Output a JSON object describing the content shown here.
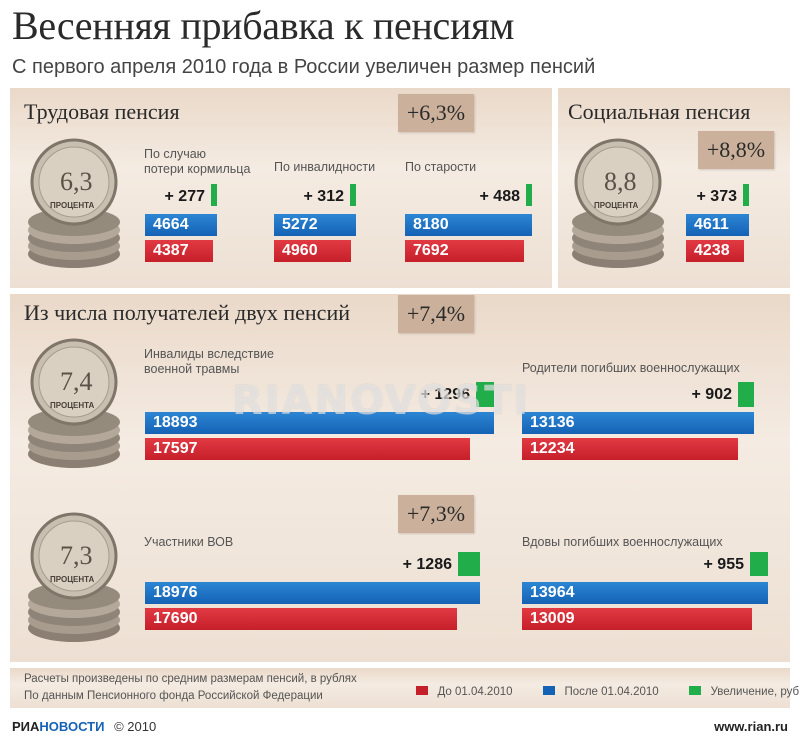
{
  "header": {
    "title": "Весенняя прибавка к пенсиям",
    "subtitle": "С первого апреля 2010 года в России увеличен размер пенсий"
  },
  "colors": {
    "before": "#c51f2a",
    "after": "#1462b5",
    "increase": "#22ad4b"
  },
  "sections": {
    "labor": {
      "title": "Трудовая пенсия",
      "pct": "+6,3%",
      "coin_value": "6,3",
      "coin_caption": "ПРОЦЕНТА"
    },
    "social": {
      "title": "Социальная пенсия",
      "pct": "+8,8%",
      "coin_value": "8,8",
      "coin_caption": "ПРОЦЕНТА"
    },
    "double": {
      "title": "Из числа получателей двух пенсий",
      "pct": "+7,4%",
      "coin_value": "7,4",
      "coin_caption": "ПРОЦЕНТА"
    },
    "veterans": {
      "pct": "+7,3%",
      "coin_value": "7,3",
      "coin_caption": "ПРОЦЕНТА"
    }
  },
  "chart_data": {
    "type": "bar",
    "unit": "руб",
    "groups": [
      {
        "label": "По случаю потери кормильца",
        "label_lines": [
          "По случаю",
          "потери кормильца"
        ],
        "before": 4387,
        "after": 4664,
        "increase": "+ 277"
      },
      {
        "label": "По инвалидности",
        "label_lines": [
          "По инвалидности"
        ],
        "before": 4960,
        "after": 5272,
        "increase": "+ 312"
      },
      {
        "label": "По старости",
        "label_lines": [
          "По старости"
        ],
        "before": 7692,
        "after": 8180,
        "increase": "+ 488"
      },
      {
        "label": "",
        "label_lines": [],
        "before": 4238,
        "after": 4611,
        "increase": "+ 373"
      },
      {
        "label": "Инвалиды вследствие военной травмы",
        "label_lines": [
          "Инвалиды вследствие",
          "военной травмы"
        ],
        "before": 17597,
        "after": 18893,
        "increase": "+ 1296"
      },
      {
        "label": "Родители погибших военнослужащих",
        "label_lines": [
          "Родители погибших военнослужащих"
        ],
        "before": 12234,
        "after": 13136,
        "increase": "+ 902"
      },
      {
        "label": "Участники ВОВ",
        "label_lines": [
          "Участники ВОВ"
        ],
        "before": 17690,
        "after": 18976,
        "increase": "+ 1286"
      },
      {
        "label": "Вдовы погибших военнослужащих",
        "label_lines": [
          "Вдовы погибших военнослужащих"
        ],
        "before": 13009,
        "after": 13964,
        "increase": "+ 955"
      }
    ],
    "legend": [
      {
        "label": "До 01.04.2010",
        "color": "#c51f2a"
      },
      {
        "label": "После 01.04.2010",
        "color": "#1462b5"
      },
      {
        "label": "Увеличение, руб",
        "color": "#22ad4b"
      }
    ]
  },
  "footer": {
    "note_line1": "Расчеты произведены по средним размерам пенсий, в рублях",
    "note_line2": "По данным Пенсионного фонда Российской Федерации",
    "ria_part1": "РИА",
    "ria_part2": "НОВОСТИ",
    "copyright": "© 2010",
    "site": "www.rian.ru",
    "watermark": "RIANOVOSTI"
  }
}
